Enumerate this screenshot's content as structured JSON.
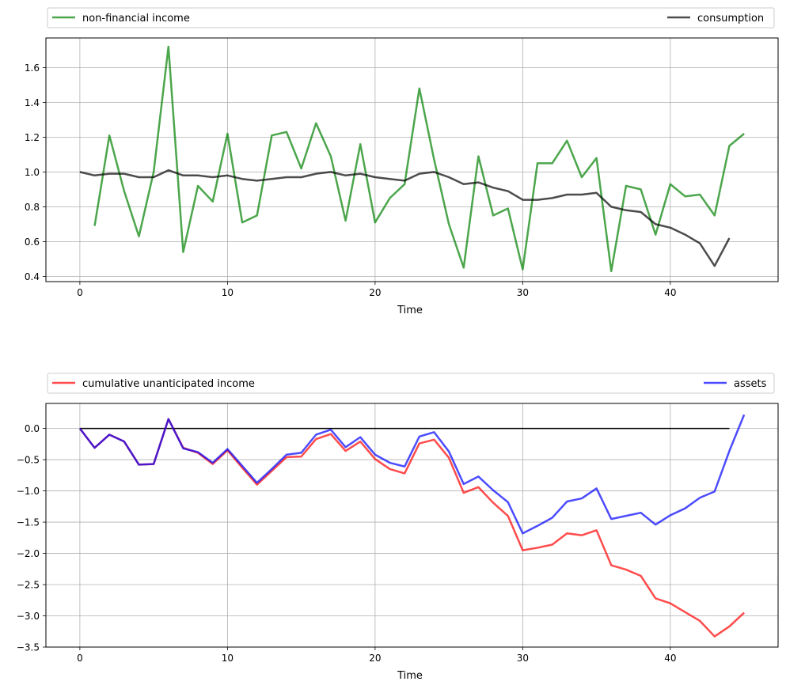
{
  "chart_data": [
    {
      "type": "line",
      "xlabel": "Time",
      "ylabel": "",
      "xlim": [
        -2.3,
        47.3
      ],
      "ylim": [
        0.37,
        1.77
      ],
      "xticks": [
        0,
        10,
        20,
        30,
        40
      ],
      "yticks": [
        0.4,
        0.6,
        0.8,
        1.0,
        1.2,
        1.4,
        1.6
      ],
      "ytick_labels": [
        "0.4",
        "0.6",
        "0.8",
        "1.0",
        "1.2",
        "1.4",
        "1.6"
      ],
      "grid": true,
      "legend_placement": "above, expanded across",
      "series": [
        {
          "name": "non-financial income",
          "color": "#008000",
          "x": [
            1,
            2,
            3,
            4,
            5,
            6,
            7,
            8,
            9,
            10,
            11,
            12,
            13,
            14,
            15,
            16,
            17,
            18,
            19,
            20,
            21,
            22,
            23,
            24,
            25,
            26,
            27,
            28,
            29,
            30,
            31,
            32,
            33,
            34,
            35,
            36,
            37,
            38,
            39,
            40,
            41,
            42,
            43,
            44,
            45
          ],
          "values": [
            0.69,
            1.21,
            0.89,
            0.63,
            1.0,
            1.72,
            0.54,
            0.92,
            0.83,
            1.22,
            0.71,
            0.75,
            1.21,
            1.23,
            1.02,
            1.28,
            1.09,
            0.72,
            1.16,
            0.71,
            0.85,
            0.93,
            1.48,
            1.07,
            0.7,
            0.45,
            1.09,
            0.75,
            0.79,
            0.44,
            1.05,
            1.05,
            1.18,
            0.97,
            1.08,
            0.43,
            0.92,
            0.9,
            0.64,
            0.93,
            0.86,
            0.87,
            0.75,
            1.15,
            1.22
          ]
        },
        {
          "name": "consumption",
          "color": "#000000",
          "x": [
            0,
            1,
            2,
            3,
            4,
            5,
            6,
            7,
            8,
            9,
            10,
            11,
            12,
            13,
            14,
            15,
            16,
            17,
            18,
            19,
            20,
            21,
            22,
            23,
            24,
            25,
            26,
            27,
            28,
            29,
            30,
            31,
            32,
            33,
            34,
            35,
            36,
            37,
            38,
            39,
            40,
            41,
            42,
            43,
            44
          ],
          "values": [
            1.0,
            0.98,
            0.99,
            0.99,
            0.97,
            0.97,
            1.01,
            0.98,
            0.98,
            0.97,
            0.98,
            0.96,
            0.95,
            0.96,
            0.97,
            0.97,
            0.99,
            1.0,
            0.98,
            0.99,
            0.97,
            0.96,
            0.95,
            0.99,
            1.0,
            0.97,
            0.93,
            0.94,
            0.91,
            0.89,
            0.84,
            0.84,
            0.85,
            0.87,
            0.87,
            0.88,
            0.8,
            0.78,
            0.77,
            0.7,
            0.68,
            0.64,
            0.59,
            0.46,
            0.62
          ]
        }
      ]
    },
    {
      "type": "line",
      "xlabel": "Time",
      "ylabel": "",
      "xlim": [
        -2.3,
        47.3
      ],
      "ylim": [
        -3.5,
        0.4
      ],
      "xticks": [
        0,
        10,
        20,
        30,
        40
      ],
      "yticks": [
        0.0,
        -0.5,
        -1.0,
        -1.5,
        -2.0,
        -2.5,
        -3.0,
        -3.5
      ],
      "ytick_labels": [
        "0.0",
        "−0.5",
        "−1.0",
        "−1.5",
        "−2.0",
        "−2.5",
        "−3.0",
        "−3.5"
      ],
      "grid": true,
      "legend_placement": "above, expanded across",
      "zero_line": {
        "color": "#000000",
        "x": [
          0,
          44
        ],
        "y": 0
      },
      "series": [
        {
          "name": "cumulative unanticipated income",
          "color": "#ff0000",
          "x": [
            0,
            1,
            2,
            3,
            4,
            5,
            6,
            7,
            8,
            9,
            10,
            11,
            12,
            13,
            14,
            15,
            16,
            17,
            18,
            19,
            20,
            21,
            22,
            23,
            24,
            25,
            26,
            27,
            28,
            29,
            30,
            31,
            32,
            33,
            34,
            35,
            36,
            37,
            38,
            39,
            40,
            41,
            42,
            43,
            44,
            45
          ],
          "values": [
            0.0,
            -0.31,
            -0.1,
            -0.21,
            -0.58,
            -0.57,
            0.15,
            -0.31,
            -0.39,
            -0.57,
            -0.35,
            -0.63,
            -0.9,
            -0.68,
            -0.46,
            -0.45,
            -0.17,
            -0.09,
            -0.36,
            -0.21,
            -0.49,
            -0.65,
            -0.72,
            -0.24,
            -0.18,
            -0.47,
            -1.03,
            -0.94,
            -1.19,
            -1.4,
            -1.95,
            -1.91,
            -1.86,
            -1.68,
            -1.71,
            -1.63,
            -2.19,
            -2.26,
            -2.36,
            -2.72,
            -2.8,
            -2.94,
            -3.08,
            -3.33,
            -3.17,
            -2.95
          ]
        },
        {
          "name": "assets",
          "color": "#0000ff",
          "x": [
            0,
            1,
            2,
            3,
            4,
            5,
            6,
            7,
            8,
            9,
            10,
            11,
            12,
            13,
            14,
            15,
            16,
            17,
            18,
            19,
            20,
            21,
            22,
            23,
            24,
            25,
            26,
            27,
            28,
            29,
            30,
            31,
            32,
            33,
            34,
            35,
            36,
            37,
            38,
            39,
            40,
            41,
            42,
            43,
            44,
            45
          ],
          "values": [
            0.0,
            -0.31,
            -0.1,
            -0.21,
            -0.58,
            -0.57,
            0.15,
            -0.32,
            -0.38,
            -0.55,
            -0.33,
            -0.6,
            -0.87,
            -0.65,
            -0.42,
            -0.39,
            -0.1,
            -0.02,
            -0.3,
            -0.14,
            -0.42,
            -0.55,
            -0.61,
            -0.13,
            -0.06,
            -0.37,
            -0.89,
            -0.77,
            -0.99,
            -1.18,
            -1.68,
            -1.56,
            -1.43,
            -1.17,
            -1.12,
            -0.96,
            -1.45,
            -1.4,
            -1.35,
            -1.54,
            -1.39,
            -1.28,
            -1.11,
            -1.01,
            -0.36,
            0.22
          ]
        }
      ]
    }
  ]
}
